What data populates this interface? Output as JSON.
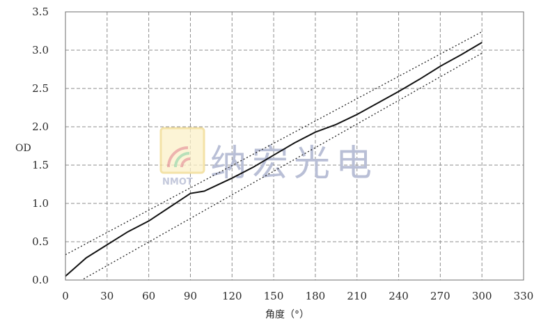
{
  "watermark": {
    "logo_text": "NMOT",
    "text": "纳宏光电",
    "colors": {
      "logo_yellow": "#f0d98a",
      "logo_red": "#e79a93",
      "logo_green": "#9fd6a2",
      "text": "#b9bfd6"
    }
  },
  "chart_data": {
    "type": "line",
    "title": "",
    "xlabel": "角度（°）",
    "ylabel": "OD",
    "xlim": [
      0,
      330
    ],
    "ylim": [
      0,
      3.5
    ],
    "xticks": [
      0,
      30,
      60,
      90,
      120,
      150,
      180,
      210,
      240,
      270,
      300,
      330
    ],
    "yticks": [
      0.0,
      0.5,
      1.0,
      1.5,
      2.0,
      2.5,
      3.0,
      3.5
    ],
    "xtick_labels": [
      "0",
      "30",
      "60",
      "90",
      "120",
      "150",
      "180",
      "210",
      "240",
      "270",
      "300",
      "330"
    ],
    "ytick_labels": [
      "0.0",
      "0.5",
      "1.0",
      "1.5",
      "2.0",
      "2.5",
      "3.0",
      "3.5"
    ],
    "grid": true,
    "legend": "none",
    "series": [
      {
        "style": "solid",
        "color": "#111111",
        "x": [
          0,
          15,
          30,
          45,
          60,
          75,
          90,
          100,
          120,
          135,
          150,
          165,
          180,
          195,
          210,
          225,
          240,
          255,
          270,
          285,
          300
        ],
        "y": [
          0.05,
          0.29,
          0.46,
          0.63,
          0.77,
          0.95,
          1.13,
          1.16,
          1.33,
          1.47,
          1.63,
          1.79,
          1.93,
          2.03,
          2.16,
          2.31,
          2.46,
          2.62,
          2.79,
          2.94,
          3.1
        ]
      },
      {
        "style": "dotted",
        "color": "#222222",
        "x": [
          0,
          300
        ],
        "y": [
          0.33,
          3.24
        ]
      },
      {
        "style": "dotted",
        "color": "#222222",
        "x": [
          0,
          300
        ],
        "y": [
          -0.12,
          2.96
        ]
      }
    ]
  }
}
